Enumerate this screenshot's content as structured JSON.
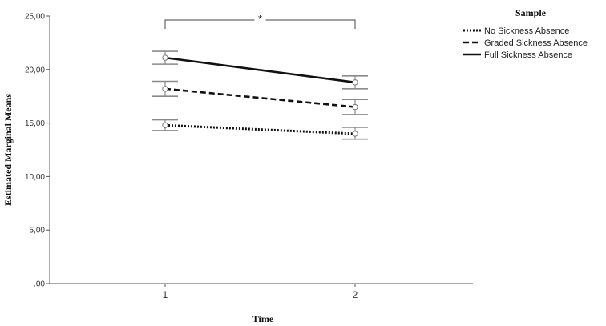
{
  "chart_data": {
    "type": "line",
    "xlabel": "Time",
    "ylabel": "Estimated Marginal Means",
    "x": [
      "1",
      "2"
    ],
    "ylim": [
      0,
      25
    ],
    "yticks": [
      ".00",
      "5,00",
      "10,00",
      "15,00",
      "20,00",
      "25,00"
    ],
    "ytick_values": [
      0,
      5,
      10,
      15,
      20,
      25
    ],
    "legend_title": "Sample",
    "legend_position": "top-right",
    "significance_label": "*",
    "grid": false,
    "series": [
      {
        "name": "No Sickness Absence",
        "style": "dotted",
        "values": [
          14.8,
          14.0
        ],
        "ci_low": [
          14.3,
          13.5
        ],
        "ci_high": [
          15.3,
          14.6
        ]
      },
      {
        "name": "Graded Sickness Absence",
        "style": "dashed",
        "values": [
          18.2,
          16.5
        ],
        "ci_low": [
          17.5,
          15.8
        ],
        "ci_high": [
          18.9,
          17.2
        ]
      },
      {
        "name": "Full Sickness Absence",
        "style": "solid",
        "values": [
          21.1,
          18.8
        ],
        "ci_low": [
          20.5,
          18.2
        ],
        "ci_high": [
          21.7,
          19.4
        ]
      }
    ]
  }
}
